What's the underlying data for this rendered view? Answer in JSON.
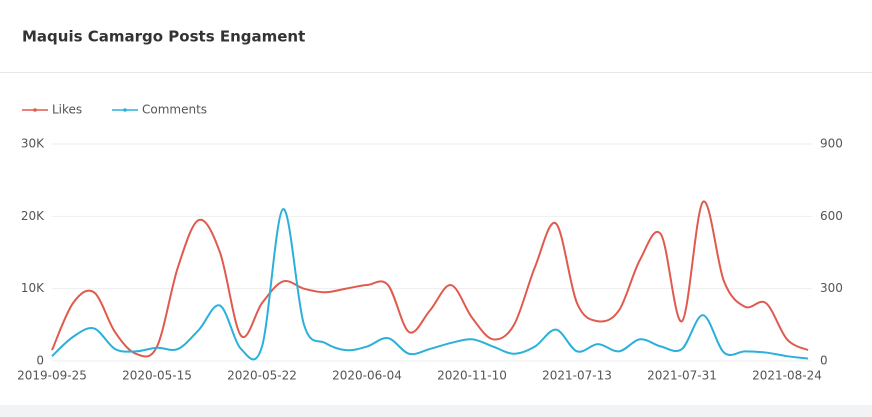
{
  "chart_data": {
    "type": "line",
    "title": "Maquis Camargo Posts Engament",
    "categories": [
      "2019-09-25",
      null,
      null,
      null,
      null,
      "2020-05-15",
      null,
      null,
      null,
      null,
      "2020-05-22",
      null,
      null,
      null,
      null,
      "2020-06-04",
      null,
      null,
      null,
      null,
      "2020-11-10",
      null,
      null,
      null,
      null,
      "2021-07-13",
      null,
      null,
      null,
      null,
      "2021-07-31",
      null,
      null,
      null,
      null,
      "2021-08-24",
      null
    ],
    "series": [
      {
        "name": "Likes",
        "color": "#e05a4e",
        "axis": "y",
        "values": [
          1500,
          8000,
          9500,
          4000,
          1000,
          2000,
          13000,
          19500,
          15000,
          3500,
          8000,
          11000,
          10000,
          9500,
          10000,
          10500,
          10500,
          4000,
          7000,
          10500,
          6000,
          3000,
          5000,
          13000,
          19000,
          8000,
          5500,
          7000,
          14000,
          17500,
          5500,
          22000,
          11000,
          7500,
          8000,
          3000,
          1500
        ]
      },
      {
        "name": "Comments",
        "color": "#2bb0dc",
        "axis": "y2",
        "values": [
          20,
          100,
          135,
          50,
          40,
          55,
          50,
          130,
          230,
          50,
          60,
          630,
          150,
          75,
          45,
          60,
          95,
          30,
          50,
          75,
          90,
          60,
          30,
          60,
          130,
          40,
          70,
          40,
          90,
          60,
          50,
          190,
          35,
          40,
          35,
          20,
          10
        ]
      }
    ],
    "ylim": [
      0,
      30000
    ],
    "yticks": [
      0,
      {
        "value": 10000,
        "label": "10K"
      },
      {
        "value": 20000,
        "label": "20K"
      },
      {
        "value": 30000,
        "label": "30K"
      }
    ],
    "y2lim": [
      0,
      900
    ],
    "y2ticks": [
      0,
      300,
      600,
      900
    ],
    "grid": true,
    "legend": "top-left"
  }
}
